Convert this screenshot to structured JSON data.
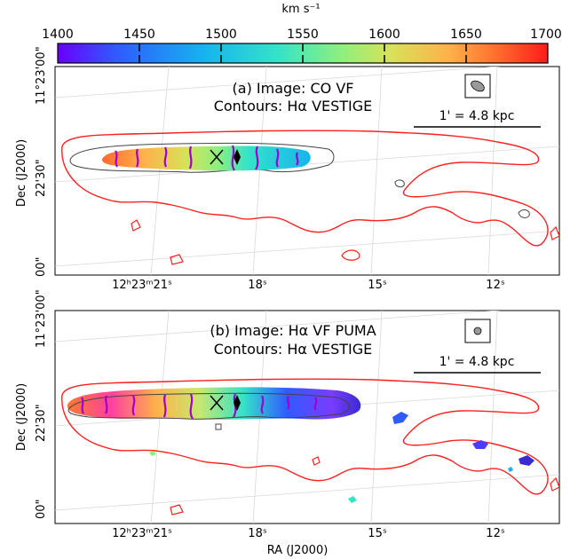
{
  "colorbar": {
    "unit_label": "km s⁻¹",
    "ticks": [
      "1400",
      "1450",
      "1500",
      "1550",
      "1600",
      "1650",
      "1700"
    ],
    "min": 1400,
    "max": 1700,
    "colors": [
      "#6a00ff",
      "#2f5bff",
      "#16b4ee",
      "#35e3c8",
      "#8ff07c",
      "#d8e15a",
      "#ffb04a",
      "#ff6a2c",
      "#ff1a1a"
    ]
  },
  "panel_a": {
    "title_line1": "(a) Image: CO VF",
    "title_line2": "Contours: Hα VESTIGE",
    "scalebar_label": "1' = 4.8 kpc",
    "beam_shape": "ellipse"
  },
  "panel_b": {
    "title_line1": "(b) Image:  Hα VF PUMA",
    "title_line2": "Contours: Hα VESTIGE",
    "scalebar_label": "1' = 4.8 kpc",
    "beam_shape": "circle"
  },
  "axes": {
    "ylabel": "Dec (J2000)",
    "xlabel": "RA (J2000)",
    "ytick_top": "11°23'00\"",
    "ytick_mid": "22'30\"",
    "ytick_bot": "00\"",
    "xtick_1": "12ʰ23ᵐ21ˢ",
    "xtick_2": "18ˢ",
    "xtick_3": "15ˢ",
    "xtick_4": "12ˢ"
  },
  "contour_colors": {
    "outer": "#ff2020",
    "inner": "#444444",
    "halpha_peak": "#a000d0"
  }
}
